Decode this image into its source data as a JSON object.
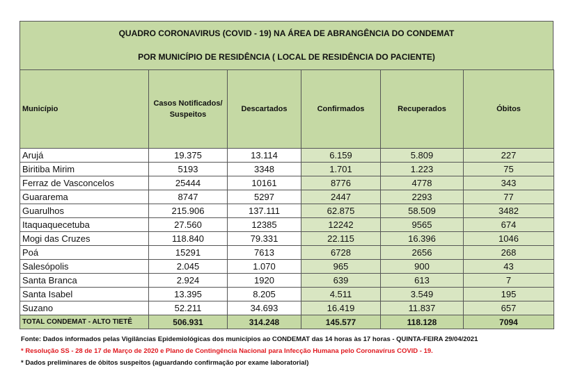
{
  "title": {
    "line1": "QUADRO CORONAVIRUS (COVID - 19) NA ÁREA DE ABRANGÊNCIA DO CONDEMAT",
    "line2": "POR MUNICÍPIO DE RESIDÊNCIA ( LOCAL DE RESIDÊNCIA DO PACIENTE)"
  },
  "table": {
    "headers": [
      "Município",
      "Casos Notificados/ Suspeitos",
      "Descartados",
      "Confirmados",
      "Recuperados",
      "Óbitos"
    ],
    "rows": [
      [
        "Arujá",
        "19.375",
        "13.114",
        "6.159",
        "5.809",
        "227"
      ],
      [
        "Biritiba Mirim",
        "5193",
        "3348",
        "1.701",
        "1.223",
        "75"
      ],
      [
        "Ferraz de Vasconcelos",
        "25444",
        "10161",
        "8776",
        "4778",
        "343"
      ],
      [
        "Guararema",
        "8747",
        "5297",
        "2447",
        "2293",
        "77"
      ],
      [
        "Guarulhos",
        "215.906",
        "137.111",
        "62.875",
        "58.509",
        "3482"
      ],
      [
        "Itaquaquecetuba",
        "27.560",
        "12385",
        "12242",
        "9565",
        "674"
      ],
      [
        "Mogi das Cruzes",
        "118.840",
        "79.331",
        "22.115",
        "16.396",
        "1046"
      ],
      [
        "Poá",
        "15291",
        "7613",
        "6728",
        "2656",
        "268"
      ],
      [
        "Salesópolis",
        "2.045",
        "1.070",
        "965",
        "900",
        "43"
      ],
      [
        "Santa Branca",
        "2.924",
        "1920",
        "639",
        "613",
        "7"
      ],
      [
        "Santa Isabel",
        "13.395",
        "8.205",
        "4.511",
        "3.549",
        "195"
      ],
      [
        "Suzano",
        "52.211",
        "34.693",
        "16.419",
        "11.837",
        "657"
      ]
    ],
    "total": [
      "TOTAL CONDEMAT - ALTO TIETÊ",
      "506.931",
      "314.248",
      "145.577",
      "118.128",
      "7094"
    ]
  },
  "footnotes": [
    "Fonte: Dados informados pelas Vigilâncias Epidemiológicas dos municípios ao CONDEMAT das 14 horas às 17 horas - QUINTA-FEIRA 29/04/2021",
    "* Resolução SS - 28 de 17 de Março de 2020 e Plano de Contingência Nacional para Infecção Humana pelo Coronavírus COVID - 19.",
    "* Dados preliminares de óbitos suspeitos (aguardando confirmação por exame laboratorial)"
  ]
}
